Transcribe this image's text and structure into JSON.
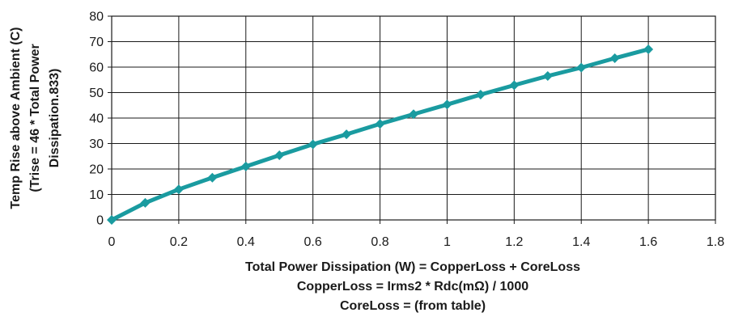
{
  "chart_data": {
    "type": "line",
    "title": "",
    "ylabel_lines": [
      "Temp Rise above Ambient (C)",
      "(Trise = 46 * Total Power",
      "Dissipation.833)"
    ],
    "xlabel_lines": [
      "Total Power Dissipation (W) = CopperLoss + CoreLoss",
      "CopperLoss = Irms2 * Rdc(mΩ) / 1000",
      "CoreLoss = (from table)"
    ],
    "xlim": [
      0,
      1.8
    ],
    "ylim": [
      0,
      80
    ],
    "xticks": [
      "0",
      "0.2",
      "0.4",
      "0.6",
      "0.8",
      "1",
      "1.2",
      "1.4",
      "1.6",
      "1.8"
    ],
    "yticks": [
      "0",
      "10",
      "20",
      "30",
      "40",
      "50",
      "60",
      "70",
      "80"
    ],
    "grid": true,
    "legend": "none",
    "series": [
      {
        "color": "#1a9ba0",
        "x": [
          0,
          0.1,
          0.2,
          0.3,
          0.4,
          0.5,
          0.6,
          0.7,
          0.8,
          0.9,
          1.0,
          1.1,
          1.2,
          1.3,
          1.4,
          1.5,
          1.6
        ],
        "y": [
          0,
          6.7,
          12.0,
          16.6,
          21.0,
          25.4,
          29.7,
          33.6,
          37.7,
          41.5,
          45.3,
          49.2,
          52.9,
          56.5,
          59.8,
          63.5,
          67.0
        ]
      }
    ]
  }
}
